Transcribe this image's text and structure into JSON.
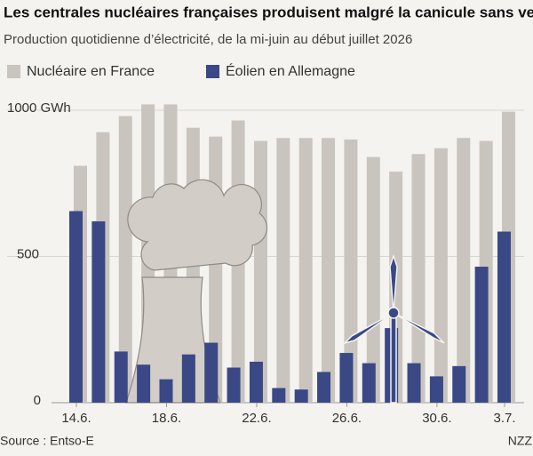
{
  "chart_data": {
    "type": "bar",
    "title": "Les centrales nucléaires françaises produisent malgré la canicule sans vent",
    "subtitle": "Production quotidienne d’électricité, de la mi-juin au début juillet 2026",
    "categories": [
      "14.6.",
      null,
      null,
      null,
      "18.6.",
      null,
      null,
      null,
      "22.6.",
      null,
      null,
      null,
      "26.6.",
      null,
      null,
      null,
      "30.6.",
      null,
      null,
      "3.7."
    ],
    "series": [
      {
        "name": "Nucléaire en France",
        "color": "#c9c4be",
        "values": [
          810,
          925,
          980,
          1020,
          1020,
          940,
          910,
          965,
          895,
          905,
          905,
          905,
          900,
          840,
          790,
          850,
          870,
          905,
          895,
          995
        ]
      },
      {
        "name": "Éolien en Allemagne",
        "color": "#3b4886",
        "values": [
          655,
          620,
          175,
          130,
          80,
          165,
          205,
          120,
          140,
          50,
          45,
          105,
          170,
          135,
          255,
          135,
          90,
          125,
          465,
          585
        ]
      }
    ],
    "ylim": [
      0,
      1000
    ],
    "yticks": [
      0,
      500,
      {
        "value": 1000,
        "label": "1000 GWh"
      }
    ],
    "grid": true,
    "source": "Source : Entso-E",
    "brand": "NZZ"
  }
}
